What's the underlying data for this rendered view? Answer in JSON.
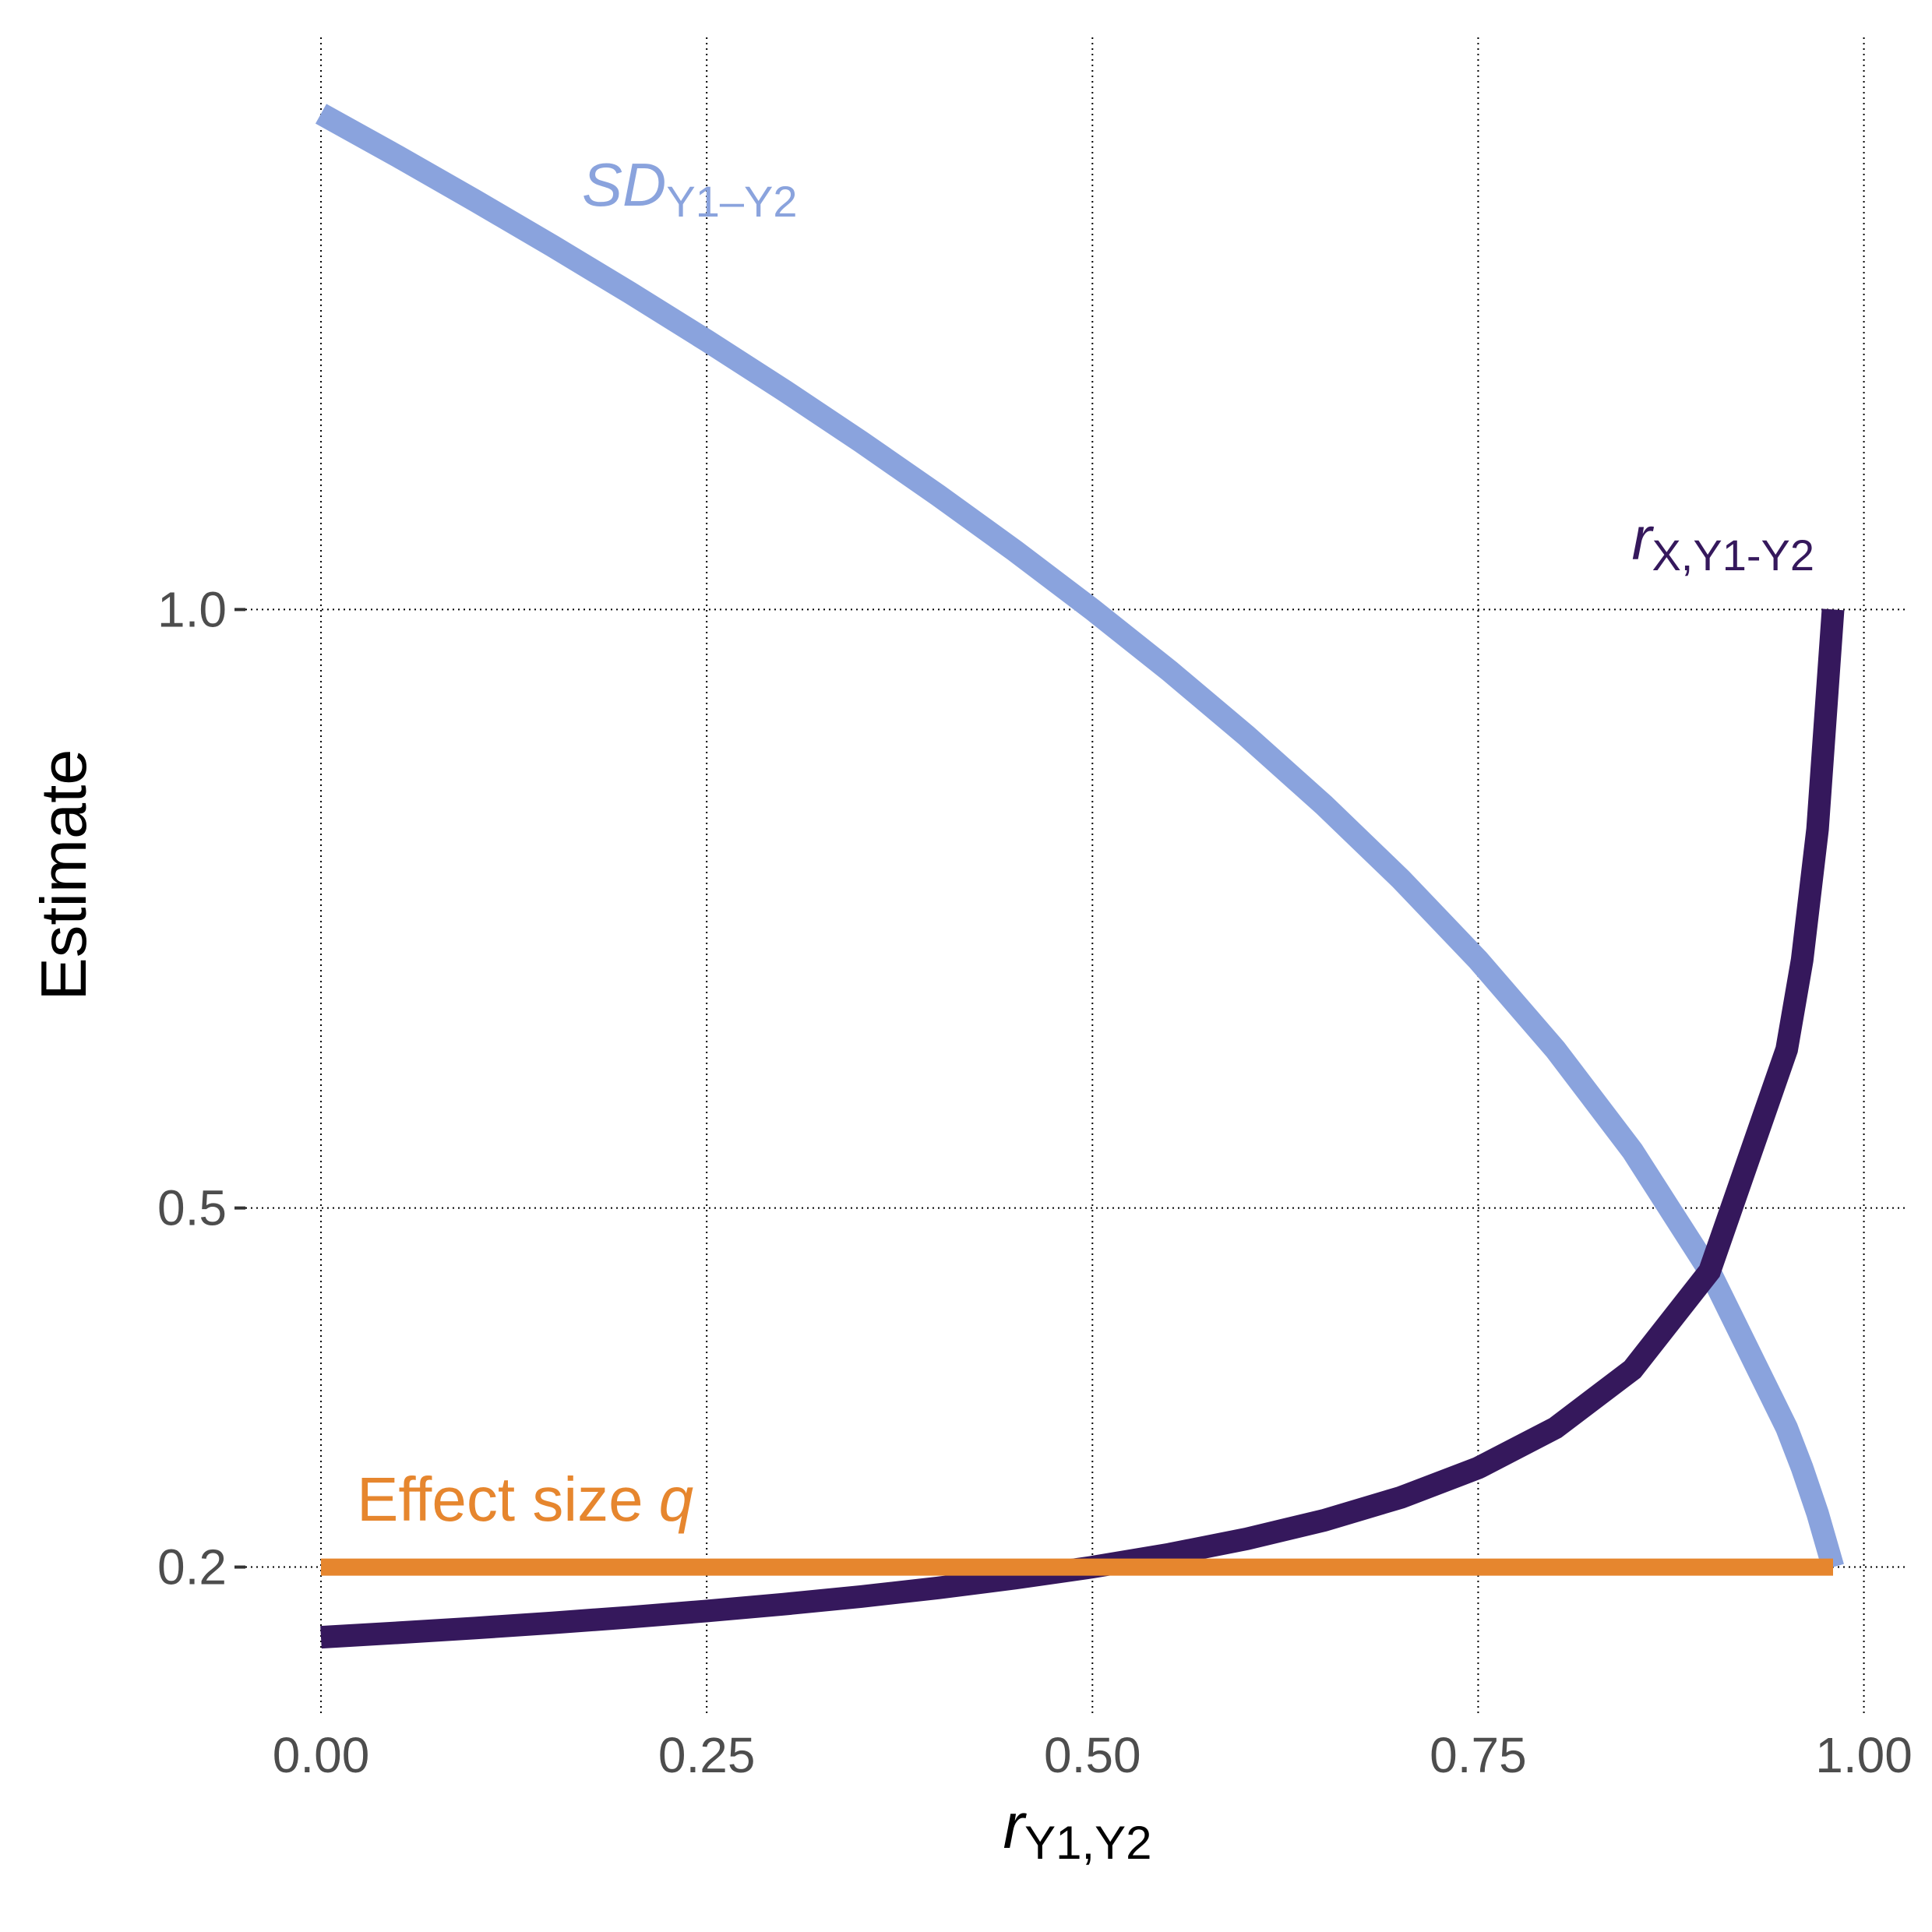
{
  "chart_data": {
    "type": "line",
    "x_label": {
      "main": "r",
      "subscript": "Y1,Y2"
    },
    "y_label": "Estimate",
    "x": [
      0,
      0.05,
      0.1,
      0.15,
      0.2,
      0.25,
      0.3,
      0.35,
      0.4,
      0.45,
      0.5,
      0.55,
      0.6,
      0.65,
      0.7,
      0.75,
      0.8,
      0.85,
      0.9,
      0.95,
      0.96,
      0.97,
      0.98
    ],
    "series": [
      {
        "name": "SD",
        "subscript": "Y1–Y2",
        "color": "#8aa3dd",
        "values": [
          1.4142,
          1.3784,
          1.3416,
          1.3038,
          1.2649,
          1.2247,
          1.1832,
          1.1402,
          1.0954,
          1.0488,
          1.0,
          0.9487,
          0.8944,
          0.8367,
          0.7746,
          0.7071,
          0.6325,
          0.5477,
          0.4472,
          0.3162,
          0.2828,
          0.2449,
          0.2
        ]
      },
      {
        "name": "r",
        "subscript": "X,Y1-Y2",
        "color": "#35185c",
        "values": [
          0.1414,
          0.1451,
          0.1491,
          0.1534,
          0.1581,
          0.1633,
          0.169,
          0.1754,
          0.1826,
          0.1907,
          0.2,
          0.2108,
          0.2236,
          0.239,
          0.2582,
          0.2828,
          0.3162,
          0.3651,
          0.4472,
          0.6325,
          0.7071,
          0.8165,
          1.0
        ]
      },
      {
        "name": "Effect size",
        "symbol": "q",
        "color": "#e6862e",
        "values": [
          0.2,
          0.2,
          0.2,
          0.2,
          0.2,
          0.2,
          0.2,
          0.2,
          0.2,
          0.2,
          0.2,
          0.2,
          0.2,
          0.2,
          0.2,
          0.2,
          0.2,
          0.2,
          0.2,
          0.2,
          0.2,
          0.2,
          0.2
        ]
      }
    ],
    "xlim": [
      -0.049,
      1.029
    ],
    "ylim": [
      0.078,
      1.478
    ],
    "xticks": [
      {
        "value": 0,
        "label": "0.00"
      },
      {
        "value": 0.25,
        "label": "0.25"
      },
      {
        "value": 0.5,
        "label": "0.50"
      },
      {
        "value": 0.75,
        "label": "0.75"
      },
      {
        "value": 1,
        "label": "1.00"
      }
    ],
    "yticks": [
      0.2,
      0.5,
      {
        "value": 1,
        "label": "1.0"
      }
    ],
    "grid": true
  }
}
